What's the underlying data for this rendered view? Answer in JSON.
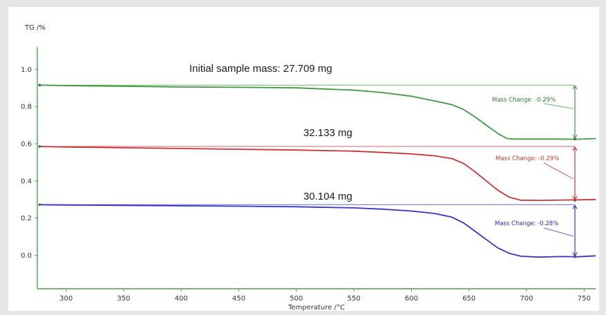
{
  "chart_data": {
    "type": "line",
    "ylabel": "TG /%",
    "xlabel": "Temperature /°C",
    "xlim": [
      275,
      760
    ],
    "ylim": [
      -0.18,
      1.12
    ],
    "x_ticks": [
      300,
      350,
      400,
      450,
      500,
      550,
      600,
      650,
      700,
      750
    ],
    "y_ticks": [
      0.0,
      0.2,
      0.4,
      0.6,
      0.8,
      1.0
    ],
    "grid": false,
    "series": [
      {
        "color": "#3f9a3f",
        "sample_mass_label": "Initial sample mass: 27.709 mg",
        "mass_change_label": "Mass Change: -0.29%",
        "start_level": 0.915,
        "end_level": 0.625,
        "points": [
          [
            277,
            0.915
          ],
          [
            300,
            0.912
          ],
          [
            350,
            0.909
          ],
          [
            400,
            0.905
          ],
          [
            450,
            0.903
          ],
          [
            500,
            0.9
          ],
          [
            550,
            0.888
          ],
          [
            575,
            0.875
          ],
          [
            600,
            0.855
          ],
          [
            620,
            0.83
          ],
          [
            635,
            0.81
          ],
          [
            645,
            0.785
          ],
          [
            655,
            0.745
          ],
          [
            665,
            0.7
          ],
          [
            675,
            0.655
          ],
          [
            683,
            0.628
          ],
          [
            690,
            0.625
          ],
          [
            720,
            0.625
          ],
          [
            745,
            0.624
          ],
          [
            760,
            0.628
          ]
        ]
      },
      {
        "color": "#cc3333",
        "sample_mass_label": "32.133 mg",
        "mass_change_label": "Mass Change: -0.29%",
        "start_level": 0.585,
        "end_level": 0.295,
        "points": [
          [
            277,
            0.585
          ],
          [
            300,
            0.582
          ],
          [
            350,
            0.578
          ],
          [
            400,
            0.574
          ],
          [
            450,
            0.57
          ],
          [
            500,
            0.566
          ],
          [
            550,
            0.56
          ],
          [
            575,
            0.553
          ],
          [
            600,
            0.545
          ],
          [
            620,
            0.535
          ],
          [
            635,
            0.52
          ],
          [
            645,
            0.495
          ],
          [
            655,
            0.45
          ],
          [
            665,
            0.4
          ],
          [
            675,
            0.35
          ],
          [
            685,
            0.312
          ],
          [
            695,
            0.296
          ],
          [
            710,
            0.295
          ],
          [
            730,
            0.297
          ],
          [
            745,
            0.298
          ],
          [
            760,
            0.3
          ]
        ]
      },
      {
        "color": "#3333cc",
        "sample_mass_label": "30.104 mg",
        "mass_change_label": "Mass Change: -0.28%",
        "start_level": 0.272,
        "end_level": -0.008,
        "points": [
          [
            277,
            0.272
          ],
          [
            300,
            0.27
          ],
          [
            350,
            0.268
          ],
          [
            400,
            0.266
          ],
          [
            450,
            0.264
          ],
          [
            500,
            0.261
          ],
          [
            550,
            0.255
          ],
          [
            575,
            0.248
          ],
          [
            600,
            0.238
          ],
          [
            620,
            0.225
          ],
          [
            635,
            0.205
          ],
          [
            645,
            0.175
          ],
          [
            655,
            0.13
          ],
          [
            665,
            0.085
          ],
          [
            675,
            0.04
          ],
          [
            685,
            0.01
          ],
          [
            695,
            -0.005
          ],
          [
            710,
            -0.01
          ],
          [
            730,
            -0.007
          ],
          [
            745,
            -0.008
          ],
          [
            760,
            -0.003
          ]
        ]
      }
    ]
  }
}
